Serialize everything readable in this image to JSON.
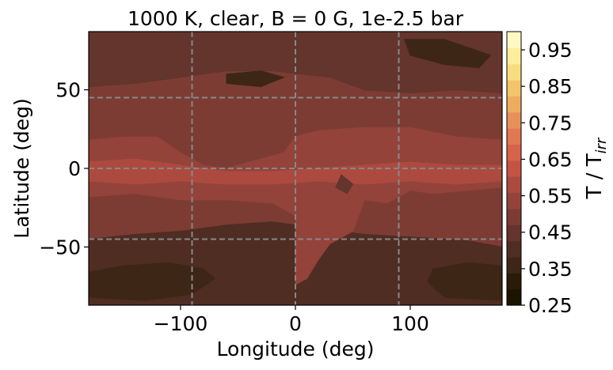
{
  "chart_data": {
    "type": "heatmap",
    "title": "1000 K, clear, B = 0 G, 1e-2.5 bar",
    "xlabel": "Longitude (deg)",
    "ylabel": "Latitude (deg)",
    "xlim": [
      -180,
      180
    ],
    "ylim": [
      -87,
      87
    ],
    "xticks": [
      -100,
      0,
      100
    ],
    "xtick_labels": [
      "−100",
      "0",
      "100"
    ],
    "yticks": [
      -50,
      0,
      50
    ],
    "ytick_labels": [
      "−50",
      "0",
      "50"
    ],
    "grid": {
      "style": "dashed",
      "color": "#888888",
      "x": [
        -90,
        0,
        90
      ],
      "y": [
        -45,
        0,
        45
      ]
    },
    "colorbar": {
      "label_main": "T / T",
      "label_sub": "irr",
      "range": [
        0.25,
        1.0
      ],
      "ticks": [
        0.25,
        0.35,
        0.45,
        0.55,
        0.65,
        0.75,
        0.85,
        0.95
      ],
      "tick_labels": [
        "0.25",
        "0.35",
        "0.45",
        "0.55",
        "0.65",
        "0.75",
        "0.85",
        "0.95"
      ],
      "colors": [
        "#1a1400",
        "#2a1a08",
        "#3d2615",
        "#4f2d22",
        "#63352c",
        "#7c3c34",
        "#94433a",
        "#ad4a3f",
        "#c55344",
        "#d6634a",
        "#e27852",
        "#e8905a",
        "#eeac5e",
        "#f3c56a",
        "#f8dc80",
        "#fcee9c",
        "#fff8c4"
      ]
    },
    "contours": [
      {
        "level": 0.42,
        "path": [
          [
            -180,
            -87
          ],
          [
            180,
            -87
          ],
          [
            180,
            -50
          ],
          [
            150,
            -46
          ],
          [
            110,
            -44
          ],
          [
            60,
            -42
          ],
          [
            20,
            -38
          ],
          [
            -20,
            -34
          ],
          [
            -60,
            -36
          ],
          [
            -100,
            -40
          ],
          [
            -140,
            -42
          ],
          [
            -180,
            -45
          ]
        ]
      },
      {
        "level": 0.46,
        "path": [
          [
            -180,
            87
          ],
          [
            180,
            87
          ],
          [
            180,
            48
          ],
          [
            140,
            50
          ],
          [
            100,
            48
          ],
          [
            60,
            50
          ],
          [
            30,
            58
          ],
          [
            -20,
            62
          ],
          [
            -60,
            62
          ],
          [
            -100,
            58
          ],
          [
            -140,
            54
          ],
          [
            -180,
            52
          ]
        ]
      },
      {
        "level": 0.5,
        "path": [
          [
            -180,
            30
          ],
          [
            -150,
            32
          ],
          [
            -120,
            26
          ],
          [
            -95,
            14
          ],
          [
            -70,
            8
          ],
          [
            -50,
            16
          ],
          [
            -20,
            22
          ],
          [
            0,
            26
          ],
          [
            40,
            28
          ],
          [
            80,
            28
          ],
          [
            120,
            28
          ],
          [
            150,
            30
          ],
          [
            180,
            30
          ],
          [
            180,
            -25
          ],
          [
            150,
            -28
          ],
          [
            120,
            -26
          ],
          [
            90,
            -32
          ],
          [
            60,
            -30
          ],
          [
            40,
            -40
          ],
          [
            20,
            -36
          ],
          [
            0,
            -34
          ],
          [
            -30,
            -30
          ],
          [
            -60,
            -28
          ],
          [
            -100,
            -26
          ],
          [
            -140,
            -24
          ],
          [
            -180,
            -26
          ]
        ]
      },
      {
        "level": 0.54,
        "path": [
          [
            -180,
            18
          ],
          [
            -150,
            20
          ],
          [
            -120,
            20
          ],
          [
            -100,
            10
          ],
          [
            -80,
            2
          ],
          [
            -60,
            0
          ],
          [
            -40,
            4
          ],
          [
            -10,
            10
          ],
          [
            0,
            20
          ],
          [
            20,
            24
          ],
          [
            60,
            26
          ],
          [
            100,
            26
          ],
          [
            140,
            20
          ],
          [
            180,
            18
          ],
          [
            180,
            -12
          ],
          [
            150,
            -14
          ],
          [
            120,
            -16
          ],
          [
            100,
            -14
          ],
          [
            80,
            -22
          ],
          [
            60,
            -20
          ],
          [
            50,
            -40
          ],
          [
            30,
            -48
          ],
          [
            20,
            -58
          ],
          [
            10,
            -70
          ],
          [
            0,
            -74
          ],
          [
            0,
            -30
          ],
          [
            -20,
            -22
          ],
          [
            -60,
            -20
          ],
          [
            -100,
            -20
          ],
          [
            -140,
            -16
          ],
          [
            -180,
            -18
          ]
        ]
      },
      {
        "level": 0.58,
        "path": [
          [
            -180,
            4
          ],
          [
            -140,
            6
          ],
          [
            -100,
            2
          ],
          [
            -60,
            -2
          ],
          [
            -20,
            -2
          ],
          [
            20,
            0
          ],
          [
            60,
            2
          ],
          [
            100,
            4
          ],
          [
            140,
            2
          ],
          [
            180,
            2
          ],
          [
            180,
            -8
          ],
          [
            140,
            -10
          ],
          [
            100,
            -8
          ],
          [
            60,
            -10
          ],
          [
            20,
            -8
          ],
          [
            -20,
            -10
          ],
          [
            -60,
            -10
          ],
          [
            -100,
            -8
          ],
          [
            -140,
            -10
          ],
          [
            -180,
            -8
          ]
        ]
      },
      {
        "level": 0.36,
        "path": [
          [
            -180,
            -66
          ],
          [
            -150,
            -62
          ],
          [
            -110,
            -60
          ],
          [
            -80,
            -64
          ],
          [
            -70,
            -70
          ],
          [
            -90,
            -80
          ],
          [
            -130,
            -84
          ],
          [
            -180,
            -82
          ]
        ]
      },
      {
        "level": 0.36,
        "path": [
          [
            180,
            -62
          ],
          [
            150,
            -60
          ],
          [
            120,
            -64
          ],
          [
            115,
            -72
          ],
          [
            130,
            -82
          ],
          [
            180,
            -84
          ]
        ]
      },
      {
        "level": 0.36,
        "path": [
          [
            95,
            82
          ],
          [
            130,
            82
          ],
          [
            170,
            72
          ],
          [
            160,
            64
          ],
          [
            130,
            66
          ],
          [
            100,
            72
          ]
        ]
      },
      {
        "level": 0.36,
        "path": [
          [
            -60,
            60
          ],
          [
            -30,
            62
          ],
          [
            -10,
            58
          ],
          [
            -30,
            52
          ],
          [
            -60,
            54
          ]
        ]
      },
      {
        "level": 0.46,
        "path": [
          [
            40,
            -4
          ],
          [
            50,
            -10
          ],
          [
            45,
            -16
          ],
          [
            35,
            -12
          ]
        ]
      }
    ]
  }
}
